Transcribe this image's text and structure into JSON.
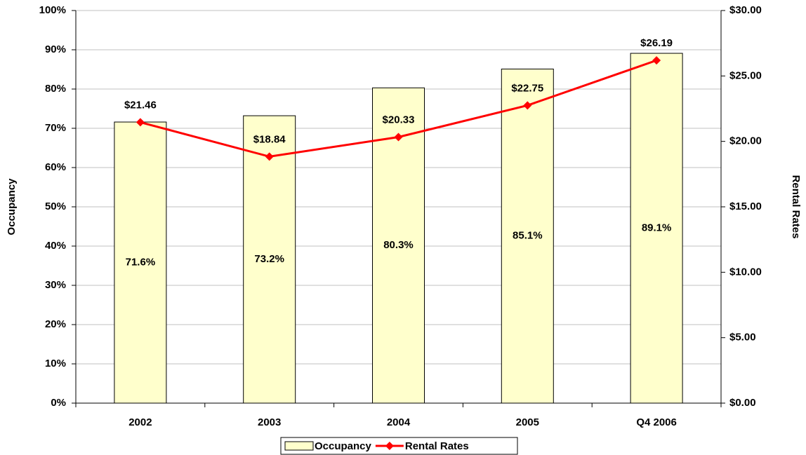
{
  "chart_data": {
    "type": "bar",
    "categories": [
      "2002",
      "2003",
      "2004",
      "2005",
      "Q4 2006"
    ],
    "series": [
      {
        "name": "Occupancy",
        "type": "bar",
        "axis": "y",
        "color": "#ffffcc",
        "values": [
          71.6,
          73.2,
          80.3,
          85.1,
          89.1
        ],
        "value_labels": [
          "71.6%",
          "73.2%",
          "80.3%",
          "85.1%",
          "89.1%"
        ]
      },
      {
        "name": "Rental Rates",
        "type": "line",
        "axis": "y2",
        "color": "#ff0000",
        "values": [
          21.46,
          18.84,
          20.33,
          22.75,
          26.19
        ],
        "value_labels": [
          "$21.46",
          "$18.84",
          "$20.33",
          "$22.75",
          "$26.19"
        ]
      }
    ],
    "ylabel": "Occupancy",
    "y2label": "Rental Rates",
    "ylim": [
      0,
      100
    ],
    "yticks": [
      {
        "value": 0,
        "label": "0%"
      },
      {
        "value": 10,
        "label": "10%"
      },
      {
        "value": 20,
        "label": "20%"
      },
      {
        "value": 30,
        "label": "30%"
      },
      {
        "value": 40,
        "label": "40%"
      },
      {
        "value": 50,
        "label": "50%"
      },
      {
        "value": 60,
        "label": "60%"
      },
      {
        "value": 70,
        "label": "70%"
      },
      {
        "value": 80,
        "label": "80%"
      },
      {
        "value": 90,
        "label": "90%"
      },
      {
        "value": 100,
        "label": "100%"
      }
    ],
    "y2lim": [
      0,
      30
    ],
    "y2ticks": [
      {
        "value": 0,
        "label": "$0.00"
      },
      {
        "value": 5,
        "label": "$5.00"
      },
      {
        "value": 10,
        "label": "$10.00"
      },
      {
        "value": 15,
        "label": "$15.00"
      },
      {
        "value": 20,
        "label": "$20.00"
      },
      {
        "value": 25,
        "label": "$25.00"
      },
      {
        "value": 30,
        "label": "$30.00"
      }
    ],
    "grid": true,
    "legend": "bottom"
  }
}
